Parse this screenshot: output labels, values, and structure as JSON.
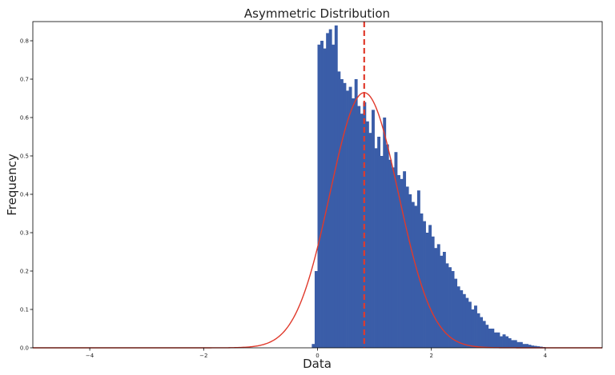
{
  "chart_data": {
    "type": "bar",
    "title": "Asymmetric Distribution",
    "xlabel": "Data",
    "ylabel": "Frequency",
    "xlim": [
      -5,
      5
    ],
    "ylim": [
      0,
      0.85
    ],
    "xticks": [
      -4,
      -2,
      0,
      2,
      4
    ],
    "yticks": [
      0.0,
      0.1,
      0.2,
      0.3,
      0.4,
      0.5,
      0.6,
      0.7,
      0.8
    ],
    "grid": false,
    "histogram": {
      "bin_width": 0.05,
      "bin_start": -0.1,
      "color": "#3a5da8",
      "values": [
        0.01,
        0.2,
        0.79,
        0.8,
        0.78,
        0.82,
        0.83,
        0.79,
        0.84,
        0.72,
        0.7,
        0.69,
        0.67,
        0.68,
        0.65,
        0.7,
        0.63,
        0.61,
        0.64,
        0.59,
        0.56,
        0.62,
        0.52,
        0.55,
        0.5,
        0.6,
        0.53,
        0.49,
        0.47,
        0.51,
        0.45,
        0.44,
        0.46,
        0.42,
        0.4,
        0.38,
        0.37,
        0.41,
        0.35,
        0.33,
        0.3,
        0.32,
        0.29,
        0.26,
        0.27,
        0.24,
        0.25,
        0.22,
        0.21,
        0.2,
        0.18,
        0.16,
        0.15,
        0.14,
        0.13,
        0.12,
        0.1,
        0.11,
        0.09,
        0.08,
        0.07,
        0.06,
        0.05,
        0.05,
        0.04,
        0.04,
        0.03,
        0.035,
        0.03,
        0.025,
        0.02,
        0.02,
        0.015,
        0.015,
        0.01,
        0.01,
        0.008,
        0.006,
        0.005,
        0.004,
        0.003,
        0.002,
        0.001
      ]
    },
    "fit_curve": {
      "kind": "normal",
      "mean": 0.82,
      "std": 0.6,
      "color": "#e03a2c",
      "x_range": [
        -5,
        5
      ]
    },
    "mean_line": {
      "x": 0.82,
      "style": "dashed",
      "color": "#e03a2c"
    }
  }
}
